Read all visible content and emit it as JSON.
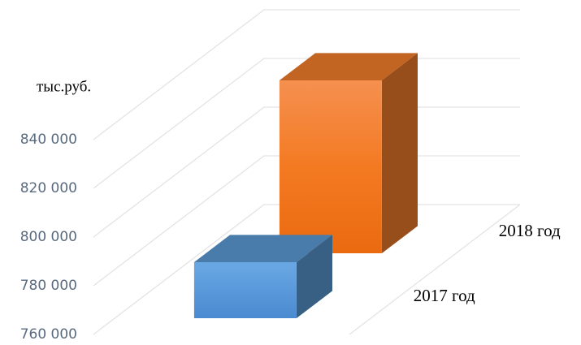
{
  "chart_data": {
    "type": "bar3d",
    "y_label": "тыс.руб.",
    "categories": [
      "2017 год",
      "2018 год"
    ],
    "values": [
      783000,
      831000
    ],
    "colors": [
      "#5b9bd5",
      "#f47e2a"
    ],
    "ylim": [
      760000,
      840000
    ],
    "yticks": [
      {
        "value": 760000,
        "label": "760 000"
      },
      {
        "value": 780000,
        "label": "780 000"
      },
      {
        "value": 800000,
        "label": "800 000"
      },
      {
        "value": 820000,
        "label": "820 000"
      },
      {
        "value": 840000,
        "label": "840 000"
      }
    ],
    "grid": true
  }
}
